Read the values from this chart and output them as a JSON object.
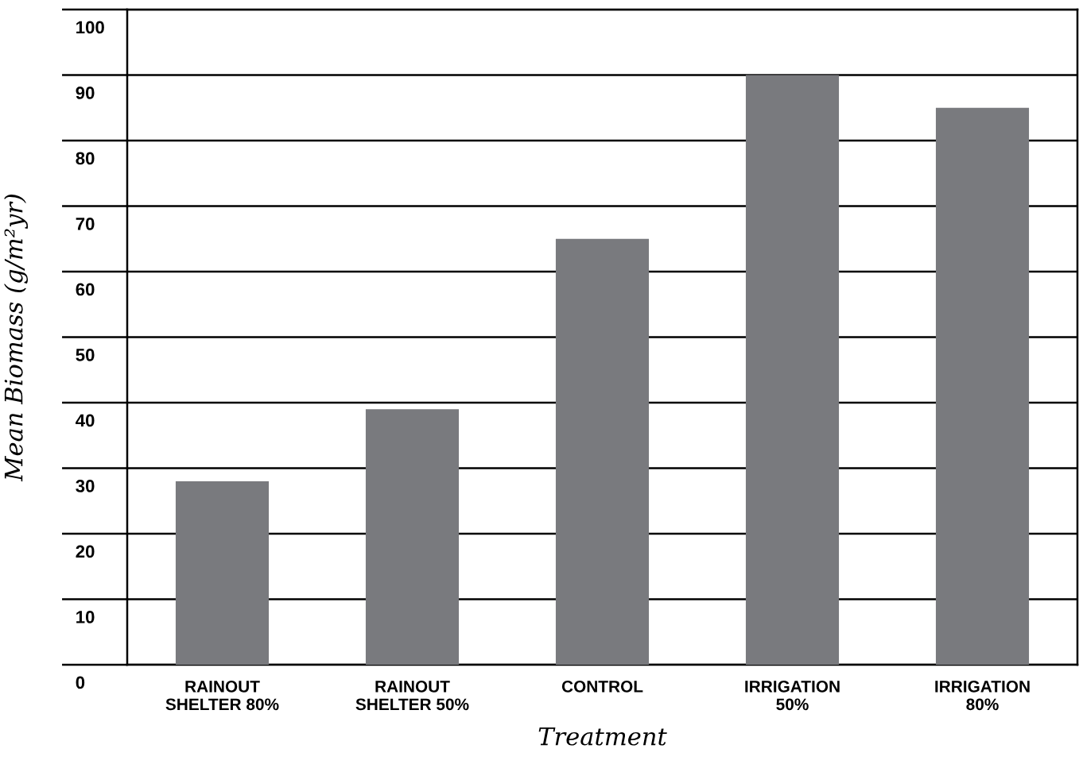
{
  "chart_data": {
    "type": "bar",
    "xlabel": "Treatment",
    "ylabel": "Mean Biomass (g/m²yr)",
    "categories": [
      "RAINOUT\nSHELTER 80%",
      "RAINOUT\nSHELTER 50%",
      "CONTROL",
      "IRRIGATION\n50%",
      "IRRIGATION\n80%"
    ],
    "values": [
      28,
      39,
      65,
      90,
      85
    ],
    "color": "#797a7e",
    "ylim": [
      0,
      100
    ],
    "yticks": [
      0,
      10,
      20,
      30,
      40,
      50,
      60,
      70,
      80,
      90,
      100
    ],
    "grid": "y"
  }
}
